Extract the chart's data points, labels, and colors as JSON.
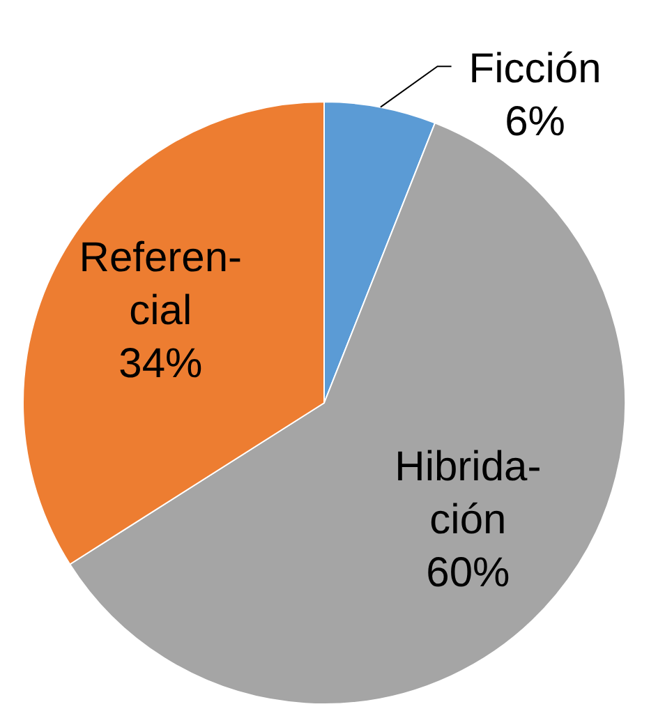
{
  "chart_data": {
    "type": "pie",
    "categories": [
      "Ficción",
      "Hibrida-\nción",
      "Referen-\ncial"
    ],
    "values": [
      6,
      60,
      34
    ],
    "value_labels": [
      "6%",
      "60%",
      "34%"
    ],
    "colors": [
      "#5b9bd5",
      "#a5a5a5",
      "#ed7d31"
    ],
    "legend": false
  }
}
